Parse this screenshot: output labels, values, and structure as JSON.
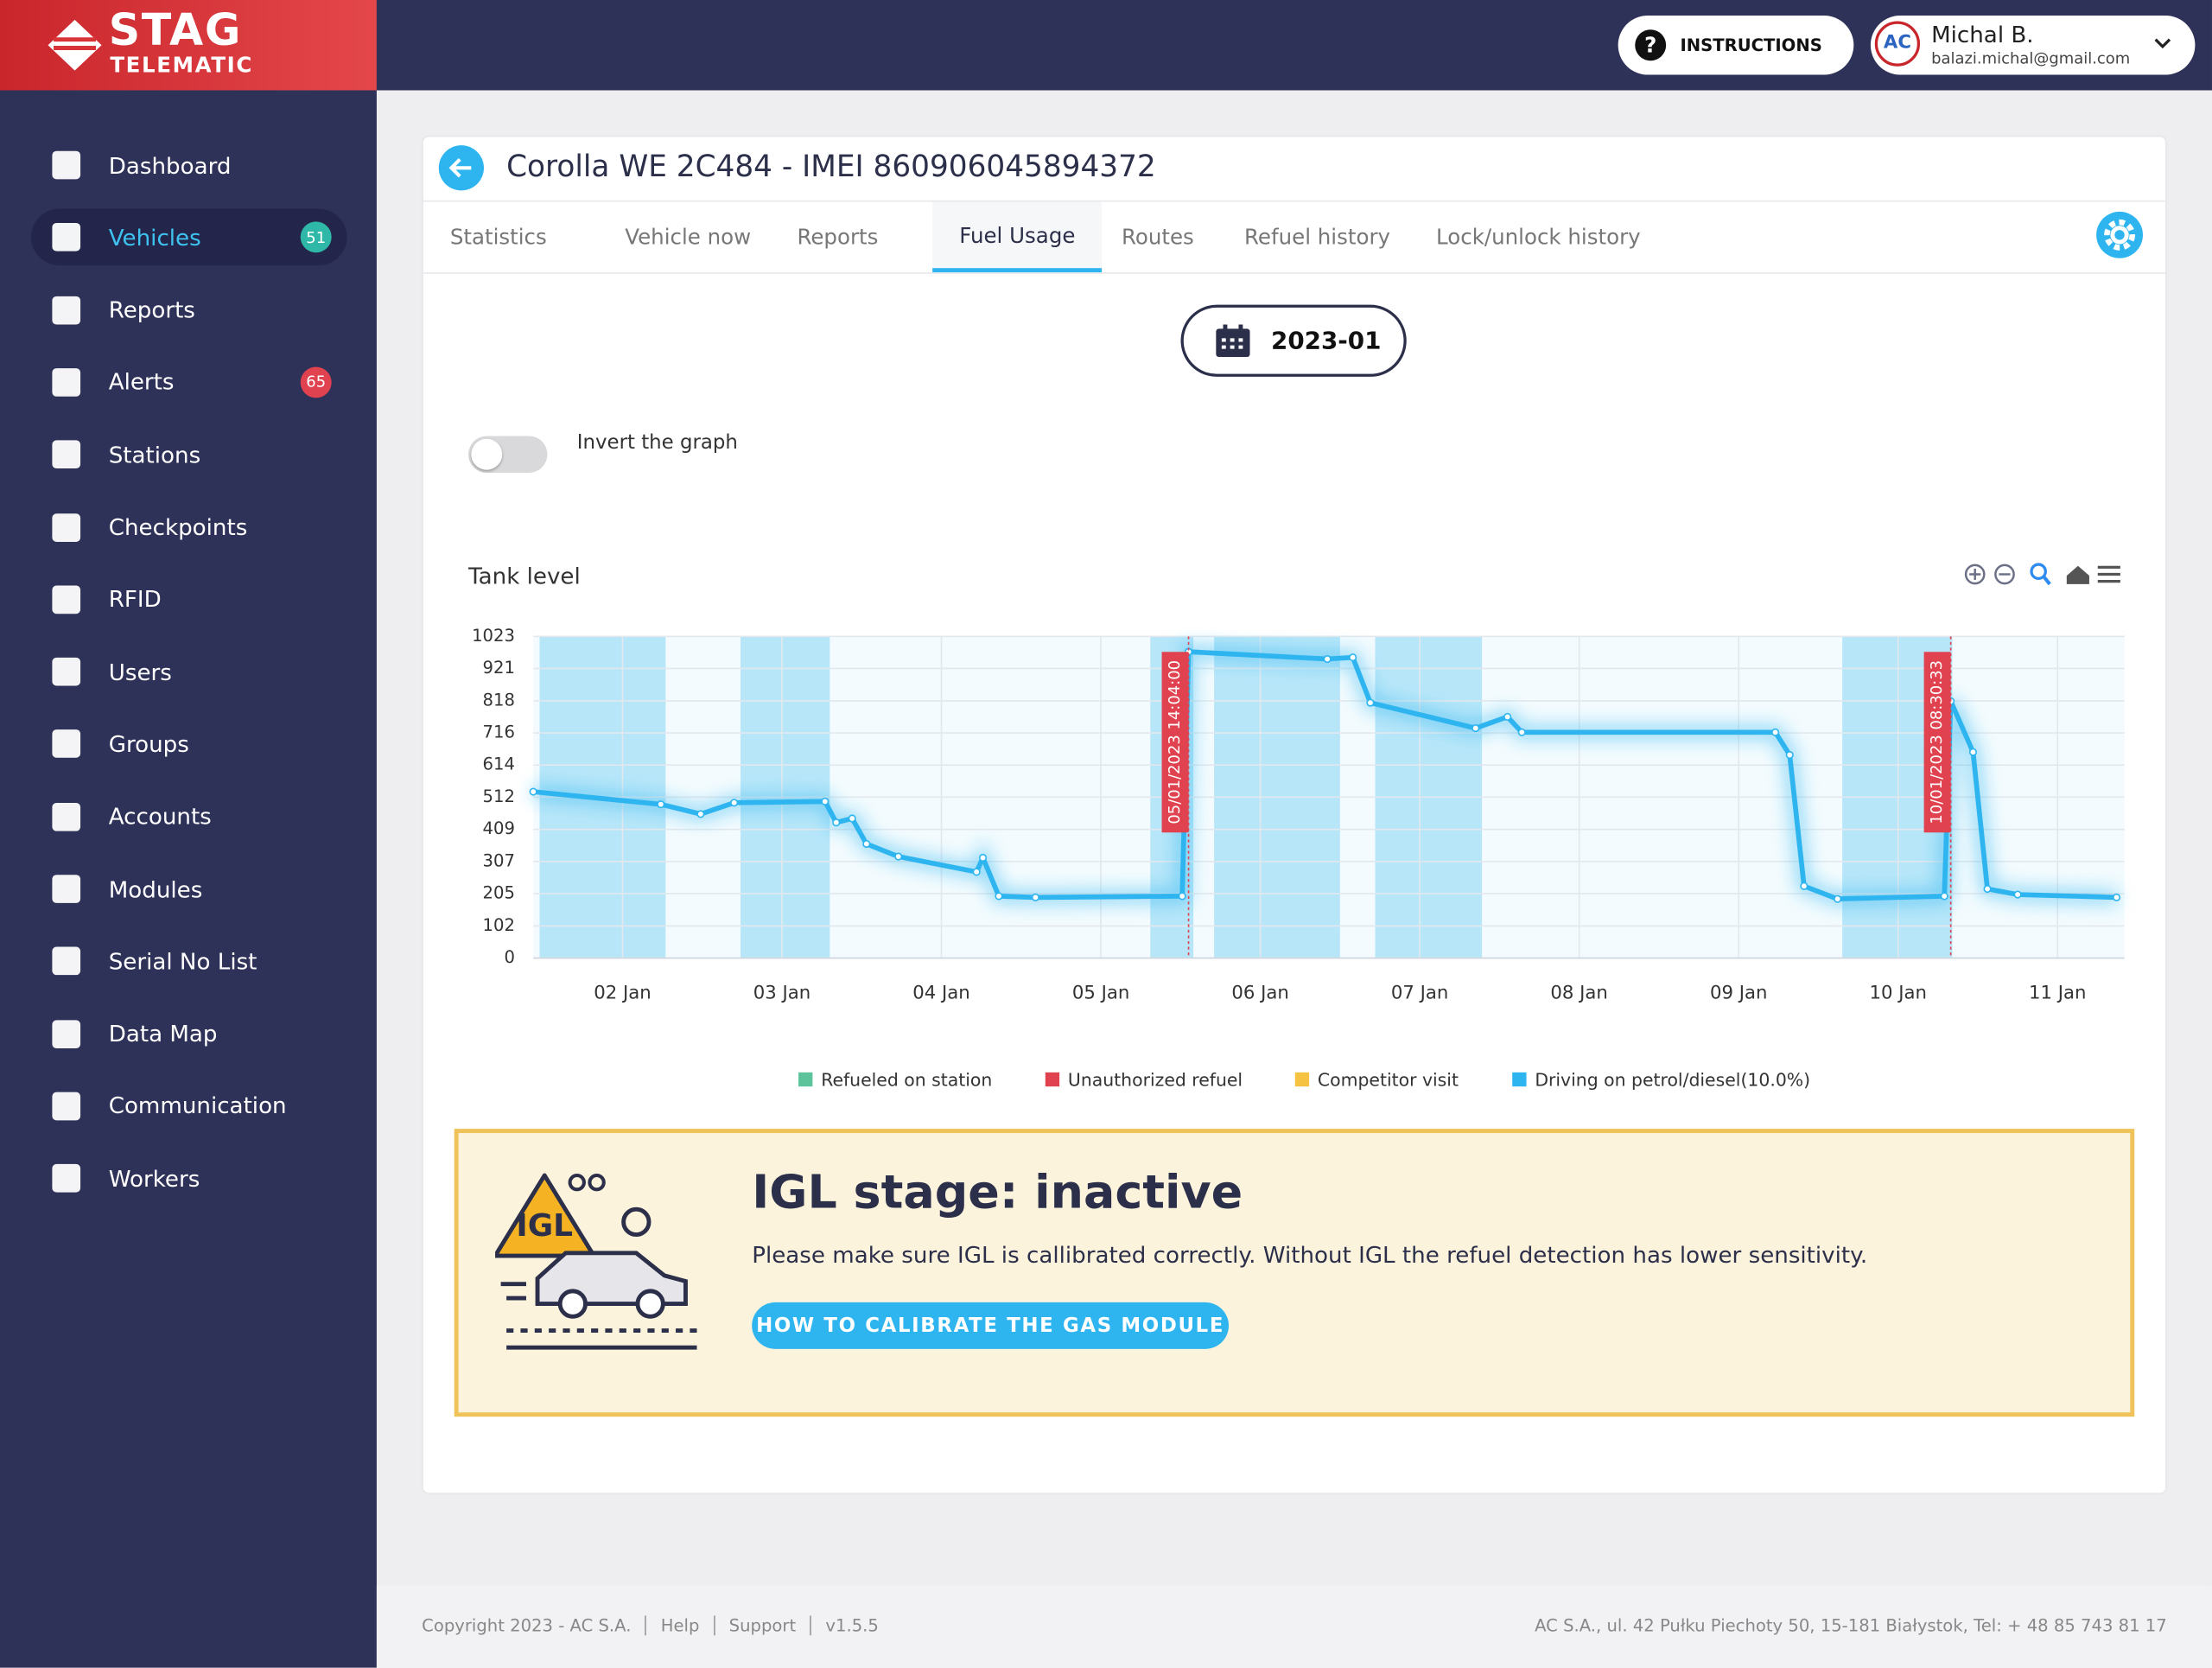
{
  "logo": {
    "line1": "STAG",
    "line2": "TELEMATIC"
  },
  "header": {
    "instructions": "INSTRUCTIONS",
    "user_name": "Michal B.",
    "user_email": "balazi.michal@gmail.com"
  },
  "sidebar": {
    "active": 1,
    "items": [
      {
        "label": "Dashboard"
      },
      {
        "label": "Vehicles",
        "badge": 51,
        "badge_color": "#2fb8a8"
      },
      {
        "label": "Reports"
      },
      {
        "label": "Alerts",
        "badge": 65,
        "badge_color": "#e0424f"
      },
      {
        "label": "Stations"
      },
      {
        "label": "Checkpoints"
      },
      {
        "label": "RFID"
      },
      {
        "label": "Users"
      },
      {
        "label": "Groups"
      },
      {
        "label": "Accounts"
      },
      {
        "label": "Modules"
      },
      {
        "label": "Serial No List"
      },
      {
        "label": "Data Map"
      },
      {
        "label": "Communication"
      },
      {
        "label": "Workers"
      }
    ]
  },
  "vehicle": {
    "title": "Corolla WE 2C484 - IMEI 860906045894372",
    "tabs": [
      "Statistics",
      "Vehicle now",
      "Reports",
      "Fuel Usage",
      "Routes",
      "Refuel history",
      "Lock/unlock history"
    ],
    "active_tab": 3,
    "month": "2023-01",
    "invert_label": "Invert the graph"
  },
  "chart_data": {
    "type": "line",
    "title": "Tank level",
    "color": "#2eb5f0",
    "x": [
      1.44,
      2.24,
      2.49,
      2.7,
      3.27,
      3.34,
      3.44,
      3.53,
      3.73,
      4.22,
      4.26,
      4.36,
      4.59,
      5.51,
      5.55,
      6.42,
      6.58,
      6.69,
      7.35,
      7.55,
      7.64,
      9.23,
      9.32,
      9.41,
      9.62,
      10.29,
      10.33,
      10.47,
      10.56,
      10.75,
      11.37
    ],
    "values": [
      529,
      489,
      458,
      494,
      498,
      431,
      444,
      363,
      323,
      274,
      319,
      197,
      193,
      197,
      974,
      951,
      956,
      812,
      731,
      767,
      718,
      718,
      646,
      229,
      188,
      197,
      817,
      655,
      220,
      202,
      193
    ],
    "xlim": [
      1.44,
      11.42
    ],
    "xticks": [
      {
        "value": 2,
        "label": "02 Jan"
      },
      {
        "value": 3,
        "label": "03 Jan"
      },
      {
        "value": 4,
        "label": "04 Jan"
      },
      {
        "value": 5,
        "label": "05 Jan"
      },
      {
        "value": 6,
        "label": "06 Jan"
      },
      {
        "value": 7,
        "label": "07 Jan"
      },
      {
        "value": 8,
        "label": "08 Jan"
      },
      {
        "value": 9,
        "label": "09 Jan"
      },
      {
        "value": 10,
        "label": "10 Jan"
      },
      {
        "value": 11,
        "label": "11 Jan"
      }
    ],
    "ylim": [
      0,
      1023
    ],
    "yticks": [
      0,
      102,
      205,
      307,
      409,
      512,
      614,
      716,
      818,
      921,
      1023
    ],
    "grid": true,
    "bands": [
      [
        1.48,
        2.27
      ],
      [
        2.74,
        3.3
      ],
      [
        5.31,
        5.58
      ],
      [
        5.71,
        6.5
      ],
      [
        6.72,
        7.39
      ],
      [
        9.65,
        10.34
      ]
    ],
    "band_color": "#2eb5f0",
    "annotations": [
      {
        "x": 5.55,
        "label": "05/01/2023 14:04:00",
        "color": "#e0424f"
      },
      {
        "x": 10.33,
        "label": "10/01/2023 08:30:33",
        "color": "#e0424f"
      }
    ],
    "legend": [
      {
        "name": "Refueled on station",
        "color": "#5cc39b"
      },
      {
        "name": "Unauthorized refuel",
        "color": "#e0424f"
      },
      {
        "name": "Competitor visit",
        "color": "#f5c242"
      },
      {
        "name": "Driving on petrol/diesel(10.0%)",
        "color": "#2eb5f0"
      }
    ]
  },
  "igl": {
    "badge": "IGL",
    "title": "IGL stage: inactive",
    "text": "Please make sure IGL is callibrated correctly. Without IGL the refuel detection has lower sensitivity.",
    "button": "HOW TO CALIBRATE THE GAS MODULE"
  },
  "footer": {
    "links": [
      "Copyright 2023 - AC S.A.",
      "Help",
      "Support",
      "v1.5.5"
    ],
    "address": "AC S.A., ul. 42 Pułku Piechoty 50, 15-181 Białystok, Tel: + 48 85 743 81 17"
  }
}
